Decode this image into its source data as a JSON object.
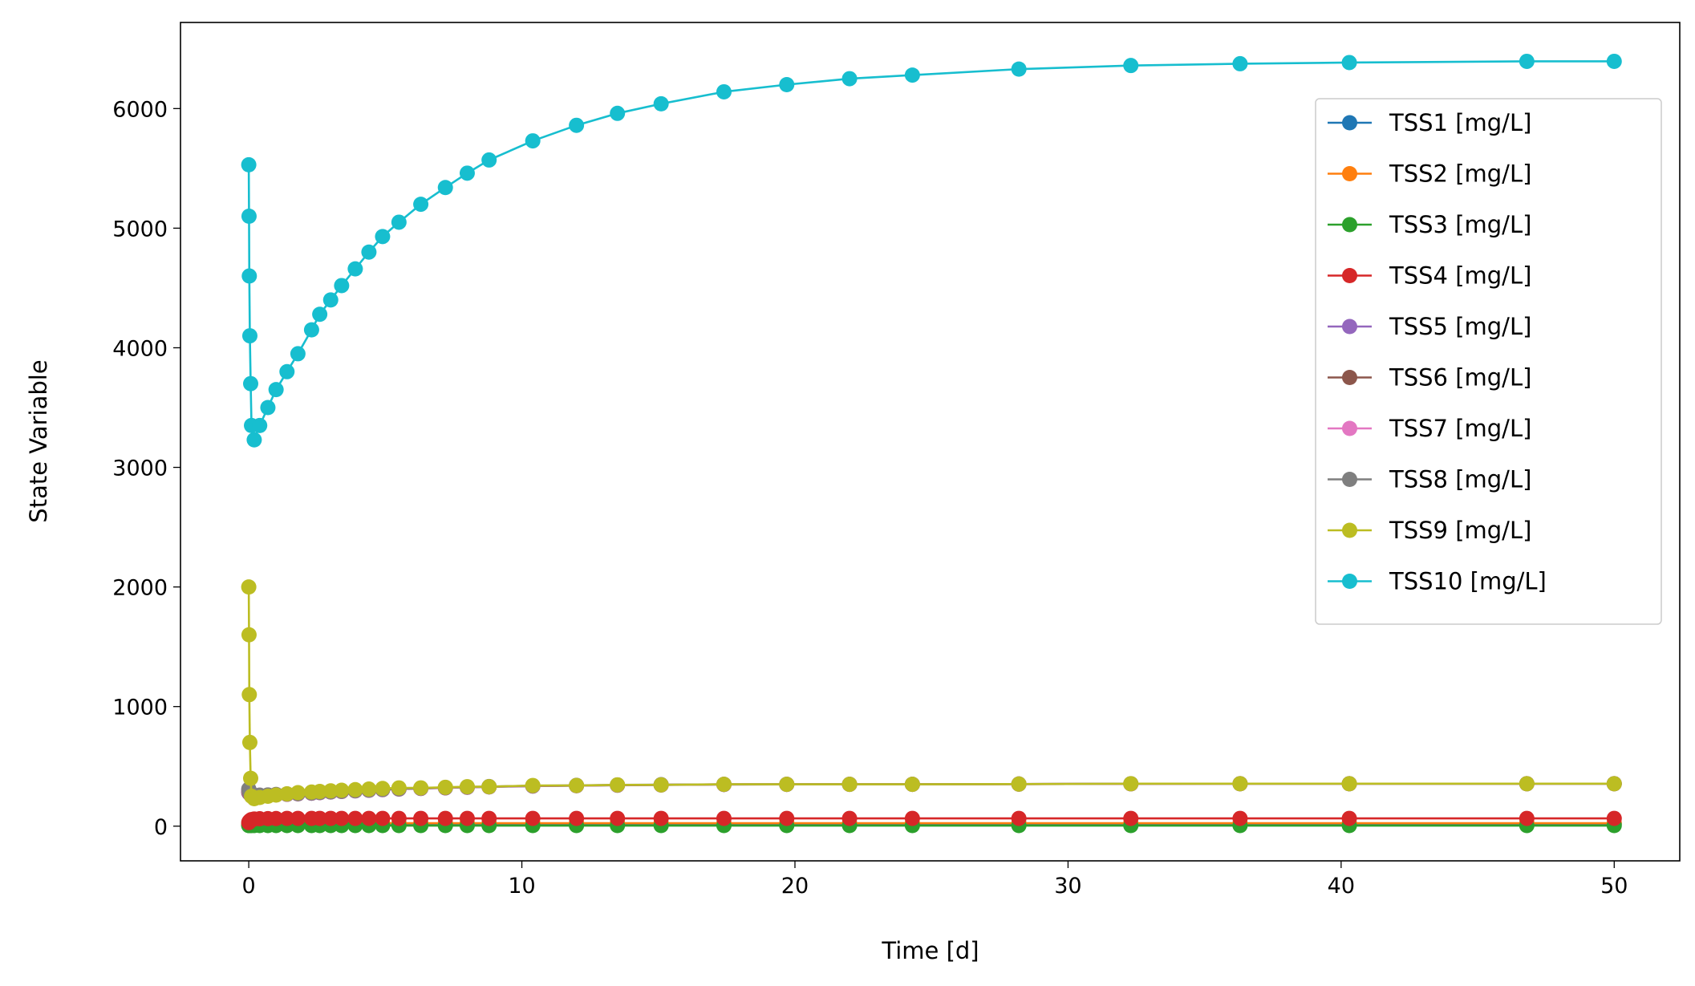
{
  "chart_data": {
    "type": "line",
    "xlabel": "Time [d]",
    "ylabel": "State Variable",
    "xlim": [
      -2.5,
      52.4
    ],
    "ylim": [
      -290,
      6720
    ],
    "xticks": [
      0,
      10,
      20,
      30,
      40,
      50
    ],
    "yticks": [
      0,
      1000,
      2000,
      3000,
      4000,
      5000,
      6000
    ],
    "legend": "right",
    "markers": true,
    "x": [
      0,
      0.01,
      0.02,
      0.04,
      0.07,
      0.1,
      0.2,
      0.4,
      0.7,
      1.0,
      1.4,
      1.8,
      2.3,
      2.6,
      3.0,
      3.4,
      3.9,
      4.4,
      4.9,
      5.5,
      6.3,
      7.2,
      8.0,
      8.8,
      10.4,
      12.0,
      13.5,
      15.1,
      17.4,
      19.7,
      22.0,
      24.3,
      28.2,
      32.3,
      36.3,
      40.3,
      46.8,
      50
    ],
    "series": [
      {
        "name": "TSS1 [mg/L]",
        "color": "#1f77b4",
        "values": [
          10,
          11,
          12,
          13,
          14,
          15,
          16,
          17,
          18,
          18,
          19,
          19,
          20,
          20,
          20,
          20,
          20,
          20,
          20,
          20,
          20,
          20,
          20,
          20,
          20,
          20,
          20,
          20,
          20,
          20,
          20,
          20,
          20,
          20,
          20,
          20,
          20,
          20
        ]
      },
      {
        "name": "TSS2 [mg/L]",
        "color": "#ff7f0e",
        "values": [
          15,
          16,
          17,
          18,
          19,
          20,
          21,
          22,
          23,
          24,
          25,
          25,
          25,
          25,
          25,
          25,
          25,
          25,
          25,
          25,
          25,
          25,
          25,
          25,
          25,
          25,
          25,
          25,
          25,
          25,
          25,
          25,
          25,
          25,
          25,
          25,
          25,
          25
        ]
      },
      {
        "name": "TSS3 [mg/L]",
        "color": "#2ca02c",
        "values": [
          5,
          5,
          5,
          5,
          5,
          5,
          5,
          5,
          5,
          5,
          5,
          5,
          5,
          5,
          5,
          5,
          5,
          5,
          5,
          5,
          5,
          5,
          5,
          5,
          5,
          5,
          5,
          5,
          5,
          5,
          5,
          5,
          5,
          5,
          5,
          5,
          5,
          5
        ]
      },
      {
        "name": "TSS4 [mg/L]",
        "color": "#d62728",
        "values": [
          30,
          35,
          40,
          45,
          50,
          55,
          60,
          62,
          63,
          64,
          65,
          65,
          65,
          65,
          65,
          65,
          65,
          65,
          65,
          65,
          65,
          65,
          65,
          65,
          65,
          65,
          65,
          65,
          65,
          65,
          65,
          65,
          65,
          65,
          65,
          65,
          65,
          65
        ]
      },
      {
        "name": "TSS5 [mg/L]",
        "color": "#9467bd",
        "values": [
          280,
          280,
          275,
          270,
          265,
          260,
          255,
          255,
          258,
          262,
          266,
          270,
          275,
          280,
          285,
          290,
          295,
          300,
          305,
          310,
          315,
          320,
          325,
          328,
          335,
          338,
          342,
          344,
          348,
          349,
          350,
          350,
          352,
          354,
          355,
          355,
          355,
          355
        ]
      },
      {
        "name": "TSS6 [mg/L]",
        "color": "#8c564b",
        "values": [
          290,
          285,
          280,
          275,
          268,
          262,
          256,
          256,
          259,
          263,
          267,
          271,
          276,
          281,
          286,
          291,
          296,
          301,
          306,
          311,
          316,
          321,
          326,
          329,
          336,
          339,
          343,
          345,
          349,
          350,
          350,
          350,
          352,
          354,
          355,
          355,
          355,
          355
        ]
      },
      {
        "name": "TSS7 [mg/L]",
        "color": "#e377c2",
        "values": [
          300,
          295,
          288,
          280,
          272,
          264,
          258,
          258,
          260,
          264,
          268,
          272,
          277,
          282,
          287,
          292,
          297,
          302,
          307,
          312,
          317,
          322,
          327,
          330,
          337,
          340,
          344,
          346,
          350,
          350,
          350,
          350,
          352,
          354,
          355,
          355,
          355,
          355
        ]
      },
      {
        "name": "TSS8 [mg/L]",
        "color": "#7f7f7f",
        "values": [
          310,
          300,
          292,
          284,
          275,
          266,
          259,
          259,
          261,
          265,
          269,
          273,
          278,
          283,
          288,
          293,
          298,
          303,
          308,
          313,
          318,
          323,
          328,
          331,
          338,
          341,
          345,
          347,
          350,
          350,
          350,
          350,
          352,
          355,
          355,
          355,
          355,
          355
        ]
      },
      {
        "name": "TSS9 [mg/L]",
        "color": "#bcbd22",
        "values": [
          2000,
          1600,
          1100,
          700,
          400,
          250,
          230,
          240,
          250,
          260,
          270,
          280,
          285,
          290,
          295,
          300,
          305,
          310,
          315,
          320,
          320,
          325,
          330,
          330,
          340,
          340,
          345,
          345,
          350,
          350,
          350,
          350,
          352,
          355,
          355,
          355,
          355,
          355
        ]
      },
      {
        "name": "TSS10 [mg/L]",
        "color": "#17becf",
        "values": [
          5530,
          5100,
          4600,
          4100,
          3700,
          3350,
          3230,
          3350,
          3500,
          3650,
          3800,
          3950,
          4150,
          4280,
          4400,
          4520,
          4660,
          4800,
          4930,
          5050,
          5200,
          5340,
          5460,
          5570,
          5730,
          5860,
          5960,
          6040,
          6140,
          6200,
          6250,
          6280,
          6330,
          6360,
          6375,
          6385,
          6395,
          6395
        ]
      }
    ]
  }
}
